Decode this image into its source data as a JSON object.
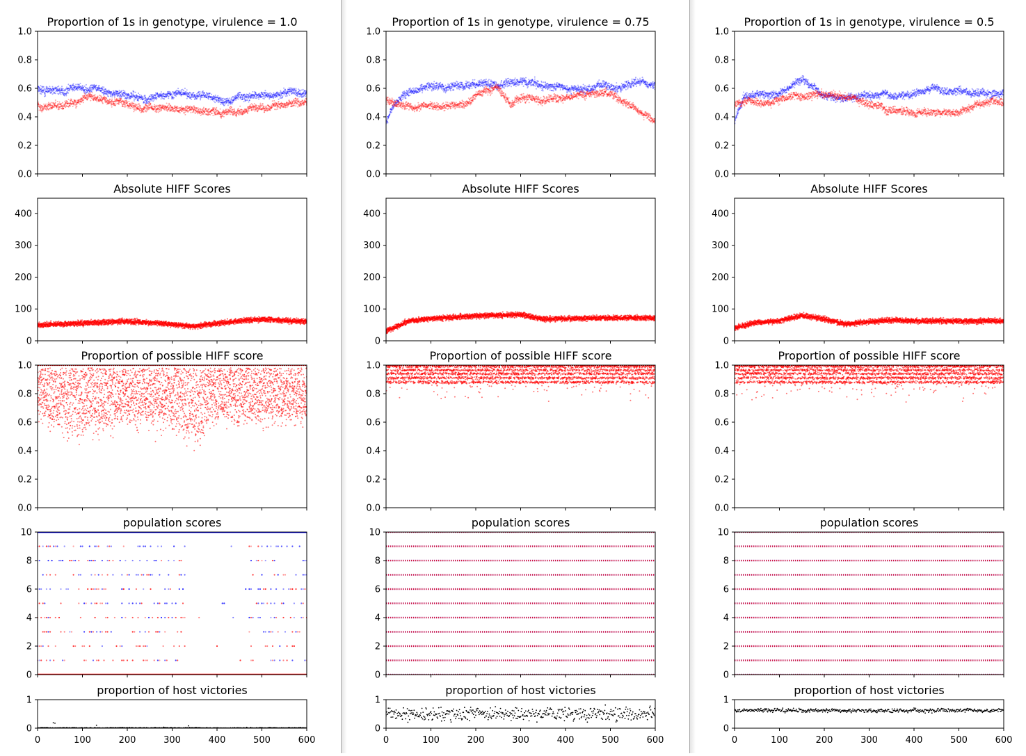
{
  "colors": {
    "host": "#ff0000",
    "parasite": "#0000ff",
    "victories": "#000000"
  },
  "columns": [
    {
      "virulence": "1.0",
      "title": "Proportion of 1s in genotype, virulence = 1.0"
    },
    {
      "virulence": "0.75",
      "title": "Proportion of 1s in genotype, virulence = 0.75"
    },
    {
      "virulence": "0.5",
      "title": "Proportion of 1s in genotype, virulence = 0.5"
    }
  ],
  "chart_data": [
    {
      "type": "scatter",
      "column": 1,
      "row": 1,
      "title": "Proportion of 1s in genotype, virulence = 1.0",
      "ylim": [
        0,
        1
      ],
      "yticks": [
        "0.0",
        "0.2",
        "0.4",
        "0.6",
        "0.8",
        "1.0"
      ],
      "series": [
        {
          "color": "blue",
          "trend": [
            [
              0,
              0.6
            ],
            [
              50,
              0.57
            ],
            [
              100,
              0.6
            ],
            [
              150,
              0.56
            ],
            [
              200,
              0.55
            ],
            [
              250,
              0.53
            ],
            [
              300,
              0.55
            ],
            [
              350,
              0.53
            ],
            [
              400,
              0.52
            ],
            [
              450,
              0.55
            ],
            [
              500,
              0.56
            ],
            [
              550,
              0.58
            ],
            [
              600,
              0.58
            ]
          ]
        },
        {
          "color": "red",
          "trend": [
            [
              0,
              0.48
            ],
            [
              50,
              0.47
            ],
            [
              100,
              0.52
            ],
            [
              150,
              0.5
            ],
            [
              200,
              0.5
            ],
            [
              250,
              0.47
            ],
            [
              300,
              0.48
            ],
            [
              350,
              0.46
            ],
            [
              400,
              0.43
            ],
            [
              450,
              0.42
            ],
            [
              500,
              0.45
            ],
            [
              550,
              0.47
            ],
            [
              600,
              0.5
            ]
          ]
        }
      ]
    },
    {
      "type": "scatter",
      "column": 1,
      "row": 2,
      "title": "Absolute HIFF Scores",
      "ylim": [
        0,
        448
      ],
      "yticks": [
        "0",
        "100",
        "200",
        "300",
        "400"
      ],
      "series": [
        {
          "color": "red",
          "trend": [
            [
              0,
              50
            ],
            [
              100,
              55
            ],
            [
              200,
              62
            ],
            [
              300,
              52
            ],
            [
              350,
              45
            ],
            [
              400,
              55
            ],
            [
              450,
              62
            ],
            [
              500,
              68
            ],
            [
              600,
              60
            ]
          ]
        }
      ]
    },
    {
      "type": "scatter",
      "column": 1,
      "row": 3,
      "title": "Proportion of possible HIFF score",
      "ylim": [
        0,
        1
      ],
      "yticks": [
        "0.0",
        "0.2",
        "0.4",
        "0.6",
        "0.8",
        "1.0"
      ],
      "series": [
        {
          "color": "red",
          "trend": [
            [
              0,
              0.8
            ],
            [
              100,
              0.7
            ],
            [
              200,
              0.8
            ],
            [
              300,
              0.75
            ],
            [
              350,
              0.65
            ],
            [
              400,
              0.8
            ],
            [
              500,
              0.8
            ],
            [
              600,
              0.8
            ]
          ]
        }
      ]
    },
    {
      "type": "scatter",
      "column": 1,
      "row": 4,
      "title": "population scores",
      "ylim": [
        0,
        10
      ],
      "yticks": [
        "0",
        "2",
        "4",
        "6",
        "8",
        "10"
      ],
      "series": [
        {
          "color": "blue",
          "levels": [
            10
          ]
        },
        {
          "color": "red",
          "levels": [
            0
          ]
        }
      ]
    },
    {
      "type": "scatter",
      "column": 1,
      "row": 5,
      "title": "proportion of host victories",
      "ylim": [
        0,
        1
      ],
      "yticks": [
        "0",
        "1"
      ],
      "xlim": [
        0,
        600
      ],
      "xticks": [
        "0",
        "100",
        "200",
        "300",
        "400",
        "500",
        "600"
      ],
      "series": [
        {
          "color": "black",
          "mean": 0.02
        }
      ]
    },
    {
      "type": "scatter",
      "column": 2,
      "row": 1,
      "title": "Proportion of 1s in genotype, virulence = 0.75",
      "ylim": [
        0,
        1
      ],
      "yticks": [
        "0.0",
        "0.2",
        "0.4",
        "0.6",
        "0.8",
        "1.0"
      ],
      "series": [
        {
          "color": "blue",
          "trend": [
            [
              0,
              0.36
            ],
            [
              20,
              0.5
            ],
            [
              50,
              0.58
            ],
            [
              100,
              0.6
            ],
            [
              150,
              0.62
            ],
            [
              200,
              0.63
            ],
            [
              250,
              0.64
            ],
            [
              300,
              0.65
            ],
            [
              350,
              0.63
            ],
            [
              400,
              0.61
            ],
            [
              450,
              0.6
            ],
            [
              500,
              0.62
            ],
            [
              550,
              0.65
            ],
            [
              600,
              0.62
            ]
          ]
        },
        {
          "color": "red",
          "trend": [
            [
              0,
              0.52
            ],
            [
              50,
              0.48
            ],
            [
              100,
              0.5
            ],
            [
              150,
              0.5
            ],
            [
              200,
              0.58
            ],
            [
              250,
              0.6
            ],
            [
              280,
              0.48
            ],
            [
              300,
              0.55
            ],
            [
              350,
              0.52
            ],
            [
              400,
              0.54
            ],
            [
              450,
              0.57
            ],
            [
              500,
              0.57
            ],
            [
              550,
              0.48
            ],
            [
              600,
              0.38
            ]
          ]
        }
      ]
    },
    {
      "type": "scatter",
      "column": 2,
      "row": 2,
      "title": "Absolute HIFF Scores",
      "ylim": [
        0,
        448
      ],
      "yticks": [
        "0",
        "100",
        "200",
        "300",
        "400"
      ],
      "series": [
        {
          "color": "red",
          "trend": [
            [
              0,
              30
            ],
            [
              50,
              62
            ],
            [
              100,
              70
            ],
            [
              200,
              78
            ],
            [
              300,
              82
            ],
            [
              350,
              68
            ],
            [
              400,
              70
            ],
            [
              500,
              72
            ],
            [
              600,
              72
            ]
          ]
        }
      ]
    },
    {
      "type": "scatter",
      "column": 2,
      "row": 3,
      "title": "Proportion of possible HIFF score",
      "ylim": [
        0,
        1
      ],
      "yticks": [
        "0.0",
        "0.2",
        "0.4",
        "0.6",
        "0.8",
        "1.0"
      ],
      "series": [
        {
          "color": "red",
          "trend": [
            [
              0,
              0.88
            ],
            [
              100,
              0.92
            ],
            [
              300,
              0.92
            ],
            [
              500,
              0.91
            ],
            [
              600,
              0.91
            ]
          ]
        }
      ]
    },
    {
      "type": "scatter",
      "column": 2,
      "row": 4,
      "title": "population scores",
      "ylim": [
        0,
        10
      ],
      "yticks": [
        "0",
        "2",
        "4",
        "6",
        "8",
        "10"
      ],
      "series": [
        {
          "color": "blue",
          "levels": [
            0,
            1,
            2,
            3,
            4,
            5,
            6,
            7,
            8,
            9,
            10
          ]
        },
        {
          "color": "red",
          "levels": [
            0,
            1,
            2,
            3,
            4,
            5,
            6,
            7,
            8,
            9,
            10
          ]
        }
      ]
    },
    {
      "type": "scatter",
      "column": 2,
      "row": 5,
      "title": "proportion of host victories",
      "ylim": [
        0,
        1
      ],
      "yticks": [
        "0",
        "1"
      ],
      "xlim": [
        0,
        600
      ],
      "xticks": [
        "0",
        "100",
        "200",
        "300",
        "400",
        "500",
        "600"
      ],
      "series": [
        {
          "color": "black",
          "mean": 0.5
        }
      ]
    },
    {
      "type": "scatter",
      "column": 3,
      "row": 1,
      "title": "Proportion of 1s in genotype, virulence = 0.5",
      "ylim": [
        0,
        1
      ],
      "yticks": [
        "0.0",
        "0.2",
        "0.4",
        "0.6",
        "0.8",
        "1.0"
      ],
      "series": [
        {
          "color": "blue",
          "trend": [
            [
              0,
              0.36
            ],
            [
              20,
              0.55
            ],
            [
              100,
              0.55
            ],
            [
              150,
              0.66
            ],
            [
              200,
              0.58
            ],
            [
              250,
              0.52
            ],
            [
              300,
              0.57
            ],
            [
              400,
              0.56
            ],
            [
              450,
              0.6
            ],
            [
              500,
              0.58
            ],
            [
              550,
              0.56
            ],
            [
              600,
              0.57
            ]
          ]
        },
        {
          "color": "red",
          "trend": [
            [
              0,
              0.48
            ],
            [
              50,
              0.5
            ],
            [
              100,
              0.52
            ],
            [
              150,
              0.55
            ],
            [
              200,
              0.55
            ],
            [
              250,
              0.5
            ],
            [
              300,
              0.5
            ],
            [
              350,
              0.45
            ],
            [
              400,
              0.44
            ],
            [
              450,
              0.44
            ],
            [
              500,
              0.43
            ],
            [
              550,
              0.48
            ],
            [
              600,
              0.5
            ]
          ]
        }
      ]
    },
    {
      "type": "scatter",
      "column": 3,
      "row": 2,
      "title": "Absolute HIFF Scores",
      "ylim": [
        0,
        448
      ],
      "yticks": [
        "0",
        "100",
        "200",
        "300",
        "400"
      ],
      "series": [
        {
          "color": "red",
          "trend": [
            [
              0,
              40
            ],
            [
              50,
              58
            ],
            [
              100,
              62
            ],
            [
              150,
              80
            ],
            [
              200,
              68
            ],
            [
              250,
              52
            ],
            [
              300,
              60
            ],
            [
              350,
              65
            ],
            [
              400,
              62
            ],
            [
              500,
              62
            ],
            [
              600,
              62
            ]
          ]
        }
      ]
    },
    {
      "type": "scatter",
      "column": 3,
      "row": 3,
      "title": "Proportion of possible HIFF score",
      "ylim": [
        0,
        1
      ],
      "yticks": [
        "0.0",
        "0.2",
        "0.4",
        "0.6",
        "0.8",
        "1.0"
      ],
      "series": [
        {
          "color": "red",
          "trend": [
            [
              0,
              0.88
            ],
            [
              100,
              0.93
            ],
            [
              300,
              0.93
            ],
            [
              600,
              0.93
            ]
          ]
        }
      ]
    },
    {
      "type": "scatter",
      "column": 3,
      "row": 4,
      "title": "population scores",
      "ylim": [
        0,
        10
      ],
      "yticks": [
        "0",
        "2",
        "4",
        "6",
        "8",
        "10"
      ],
      "series": [
        {
          "color": "blue",
          "levels": [
            0,
            1,
            2,
            3,
            4,
            5,
            6,
            7,
            8,
            9,
            10
          ]
        },
        {
          "color": "red",
          "levels": [
            0,
            1,
            2,
            3,
            4,
            5,
            6,
            7,
            8,
            9,
            10
          ]
        }
      ]
    },
    {
      "type": "scatter",
      "column": 3,
      "row": 5,
      "title": "proportion of host victories",
      "ylim": [
        0,
        1
      ],
      "yticks": [
        "0",
        "1"
      ],
      "xlim": [
        0,
        600
      ],
      "xticks": [
        "0",
        "100",
        "200",
        "300",
        "400",
        "500",
        "600"
      ],
      "series": [
        {
          "color": "black",
          "mean": 0.62
        }
      ]
    }
  ]
}
